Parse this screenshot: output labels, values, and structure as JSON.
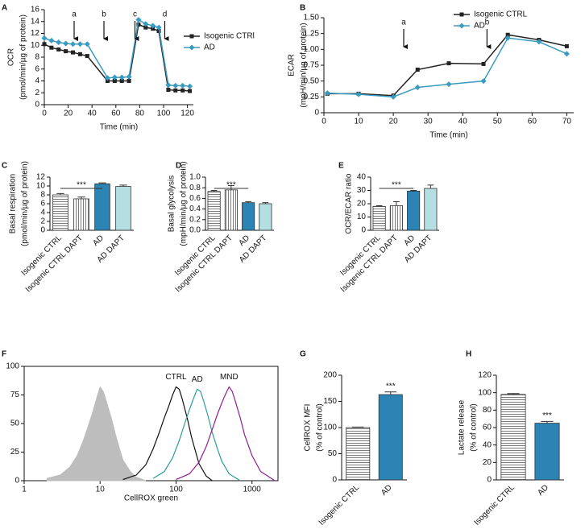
{
  "chart_data": [
    {
      "type": "line",
      "panel": "A",
      "x": [
        0,
        6,
        12,
        18,
        24,
        30,
        36,
        53,
        59,
        65,
        71,
        79,
        85,
        91,
        96,
        104,
        110,
        116,
        122
      ],
      "series": [
        {
          "name": "Isogenic CTRl",
          "color": "#222222",
          "marker": "square",
          "values": [
            10.2,
            9.6,
            9.3,
            9.0,
            8.8,
            8.5,
            8.2,
            4.0,
            4.0,
            4.0,
            4.0,
            13.5,
            13.0,
            12.8,
            12.4,
            2.5,
            2.4,
            2.4,
            2.3
          ]
        },
        {
          "name": "AD",
          "color": "#3a9bc1",
          "marker": "diamond",
          "values": [
            11.2,
            10.8,
            10.5,
            10.3,
            10.2,
            10.2,
            10.2,
            4.5,
            4.6,
            4.6,
            4.7,
            14.3,
            13.6,
            13.3,
            13.0,
            3.3,
            3.2,
            3.2,
            3.1
          ]
        }
      ],
      "annotations": [
        {
          "text": "a",
          "x": 25
        },
        {
          "text": "b",
          "x": 50
        },
        {
          "text": "c",
          "x": 76
        },
        {
          "text": "d",
          "x": 101
        }
      ],
      "xlabel": "Time (min)",
      "ylabel": [
        "OCR",
        "(pmol/min/µg of protein)"
      ],
      "xlim": [
        0,
        125
      ],
      "xticks": [
        0,
        20,
        40,
        60,
        80,
        100,
        120
      ],
      "ylim": [
        0,
        16
      ],
      "yticks": [
        0,
        2,
        4,
        6,
        8,
        10,
        12,
        14,
        16
      ]
    },
    {
      "type": "line",
      "panel": "B",
      "x": [
        1,
        10,
        20,
        27,
        36,
        46,
        53,
        62,
        70
      ],
      "series": [
        {
          "name": "Isogenic CTRL",
          "color": "#222222",
          "marker": "square",
          "values": [
            0.3,
            0.3,
            0.27,
            0.68,
            0.78,
            0.77,
            1.23,
            1.15,
            1.05
          ]
        },
        {
          "name": "AD",
          "color": "#3a9bc1",
          "marker": "diamond",
          "values": [
            0.31,
            0.29,
            0.25,
            0.4,
            0.45,
            0.5,
            1.18,
            1.12,
            0.93
          ]
        }
      ],
      "annotations": [
        {
          "text": "a",
          "x": 23
        },
        {
          "text": "b",
          "x": 47
        }
      ],
      "xlabel": "Time (min)",
      "ylabel": [
        "ECAR",
        "(mpH/min/µg of protein)"
      ],
      "xlim": [
        0,
        72
      ],
      "xticks": [
        0,
        10,
        20,
        30,
        40,
        50,
        60,
        70
      ],
      "ylim": [
        0,
        1.5
      ],
      "yticks": [
        0,
        0.25,
        {
          "value": 0.5,
          "label": "0.50"
        },
        0.75,
        {
          "value": 1,
          "label": "1.00"
        },
        1.25,
        {
          "value": 1.5,
          "label": "1.50"
        }
      ]
    },
    {
      "type": "bar",
      "panel": "C",
      "categories": [
        "Isogenic CTRL",
        "Isogenic CTRL DAPT",
        "AD",
        "AD DAPT"
      ],
      "values": [
        8.0,
        7.1,
        10.5,
        9.9
      ],
      "errors": [
        0.3,
        0.4,
        0.2,
        0.3
      ],
      "colors": [
        "#ffffff",
        "#ffffff",
        "#2b84b3",
        "#b3dfe3"
      ],
      "hatch": [
        "horizontal",
        "vertical",
        "none",
        "none"
      ],
      "significance_label": "***",
      "ylabel": [
        "Basal respiration",
        "(pmol/min/µg of protein)"
      ],
      "ylim": [
        0,
        12
      ],
      "yticks": [
        0,
        2,
        4,
        6,
        8,
        10,
        12
      ]
    },
    {
      "type": "bar",
      "panel": "D",
      "categories": [
        "Isogenic CTRL",
        "Isogenic CTRL DAPT",
        "AD",
        "AD DAPT"
      ],
      "values": [
        0.73,
        0.76,
        0.52,
        0.5
      ],
      "errors": [
        0.02,
        0.08,
        0.02,
        0.02
      ],
      "colors": [
        "#ffffff",
        "#ffffff",
        "#2b84b3",
        "#b3dfe3"
      ],
      "hatch": [
        "horizontal",
        "vertical",
        "none",
        "none"
      ],
      "significance_label": "***",
      "ylabel": [
        "Basal glycolysis",
        "(mpH/min/µg of protein)"
      ],
      "ylim": [
        0,
        1
      ],
      "yticks": [
        {
          "value": 0,
          "label": "0.0"
        },
        0.2,
        0.4,
        0.6,
        0.8,
        {
          "value": 1,
          "label": "1.0"
        }
      ]
    },
    {
      "type": "bar",
      "panel": "E",
      "categories": [
        "Isogenic CTRL",
        "Isogenic CTRL DAPT",
        "AD",
        "AD DAPT"
      ],
      "values": [
        18,
        18.5,
        29.5,
        31.5
      ],
      "errors": [
        0.5,
        3,
        0.5,
        2.5
      ],
      "colors": [
        "#ffffff",
        "#ffffff",
        "#2b84b3",
        "#b3dfe3"
      ],
      "hatch": [
        "horizontal",
        "vertical",
        "none",
        "none"
      ],
      "significance_label": "***",
      "ylabel": [
        "OCR/ECAR ratio"
      ],
      "ylim": [
        0,
        40
      ],
      "yticks": [
        0,
        10,
        20,
        30,
        40
      ]
    },
    {
      "type": "histogram",
      "panel": "F",
      "xlog": true,
      "series": [
        {
          "color": "#bdbdbd",
          "fill": true,
          "x": [
            2,
            3,
            4,
            5,
            6,
            7,
            8,
            9,
            10,
            11,
            12,
            14,
            16,
            18,
            20,
            25,
            30,
            40
          ],
          "values": [
            2,
            5,
            12,
            22,
            35,
            48,
            60,
            72,
            82,
            78,
            70,
            55,
            40,
            28,
            18,
            8,
            3,
            0
          ]
        },
        {
          "name": "CTRL",
          "color": "#111111",
          "x": [
            20,
            30,
            40,
            50,
            60,
            70,
            80,
            90,
            100,
            110,
            120,
            140,
            160,
            200,
            250,
            300
          ],
          "values": [
            1,
            5,
            14,
            28,
            42,
            55,
            65,
            75,
            82,
            80,
            72,
            55,
            38,
            15,
            4,
            0
          ]
        },
        {
          "name": "AD",
          "color": "#2a9d9a",
          "x": [
            50,
            70,
            90,
            110,
            130,
            150,
            170,
            190,
            210,
            230,
            260,
            300,
            350,
            400,
            500,
            700
          ],
          "values": [
            2,
            8,
            20,
            35,
            50,
            62,
            72,
            80,
            78,
            70,
            58,
            42,
            28,
            17,
            6,
            0
          ]
        },
        {
          "name": "MND",
          "color": "#8e1f8e",
          "x": [
            100,
            150,
            200,
            250,
            300,
            350,
            400,
            450,
            500,
            550,
            600,
            700,
            800,
            1000,
            1300,
            2000
          ],
          "values": [
            1,
            6,
            16,
            30,
            45,
            58,
            68,
            76,
            82,
            78,
            70,
            55,
            40,
            22,
            8,
            0
          ]
        }
      ],
      "xlabel": "CellROX green",
      "xlim": [
        1,
        2200
      ],
      "xticks": [
        1,
        10,
        100,
        1000
      ],
      "ylim": [
        0,
        100
      ],
      "yticks": [
        0,
        25,
        50,
        75,
        100
      ]
    },
    {
      "type": "bar",
      "panel": "G",
      "categories": [
        "Isogenic CTRL",
        "AD"
      ],
      "values": [
        100,
        163
      ],
      "errors": [
        1,
        5
      ],
      "colors": [
        "#ffffff",
        "#2b84b3"
      ],
      "hatch": [
        "horizontal",
        "none"
      ],
      "significance_label": "***",
      "ylabel": [
        "CellROX MFI",
        "(% of control)"
      ],
      "ylim": [
        0,
        200
      ],
      "yticks": [
        0,
        50,
        100,
        150,
        200
      ]
    },
    {
      "type": "bar",
      "panel": "H",
      "categories": [
        "Isogenic CTRL",
        "AD"
      ],
      "values": [
        98,
        65
      ],
      "errors": [
        1,
        2
      ],
      "colors": [
        "#ffffff",
        "#2b84b3"
      ],
      "hatch": [
        "horizontal",
        "none"
      ],
      "significance_label": "***",
      "ylabel": [
        "Lactate release",
        "(% of control)"
      ],
      "ylim": [
        0,
        120
      ],
      "yticks": [
        0,
        20,
        40,
        60,
        80,
        100,
        120
      ]
    }
  ]
}
